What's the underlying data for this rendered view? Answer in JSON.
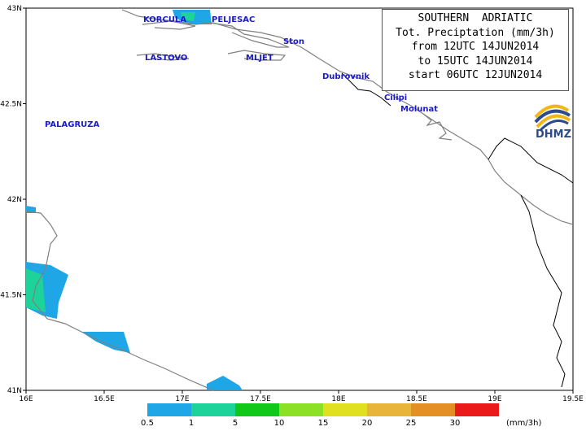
{
  "title": {
    "line1": "SOUTHERN  ADRIATIC",
    "line2": "Tot. Preciptation (mm/3h)",
    "line3": "from 12UTC 14JUN2014",
    "line4": "to 15UTC 14JUN2014",
    "line5": "start 06UTC 12JUN2014"
  },
  "logo": {
    "text": "DHMZ",
    "icon": "dhmz-swirl-logo"
  },
  "axes": {
    "x_ticks": [
      "16E",
      "16.5E",
      "17E",
      "17.5E",
      "18E",
      "18.5E",
      "19E",
      "19.5E"
    ],
    "y_ticks": [
      "43N",
      "42.5N",
      "42N",
      "41.5N",
      "41N"
    ]
  },
  "places": [
    "KORCULA",
    "PELJESAC",
    "Ston",
    "LASTOVO",
    "MLJET",
    "Dubrovnik",
    "Cilipi",
    "Molunat",
    "PALAGRUZA"
  ],
  "legend": {
    "labels": [
      "0.5",
      "1",
      "5",
      "10",
      "15",
      "20",
      "25",
      "30"
    ],
    "unit": "(mm/3h)",
    "colors": [
      "#1fa6e6",
      "#1ed39a",
      "#10c81a",
      "#8ce026",
      "#e0e020",
      "#e8b43a",
      "#e38f25",
      "#ea1a1a"
    ]
  },
  "colors": {
    "coast": "#808080",
    "border": "#000000",
    "place_labels": "#1a1acc"
  }
}
